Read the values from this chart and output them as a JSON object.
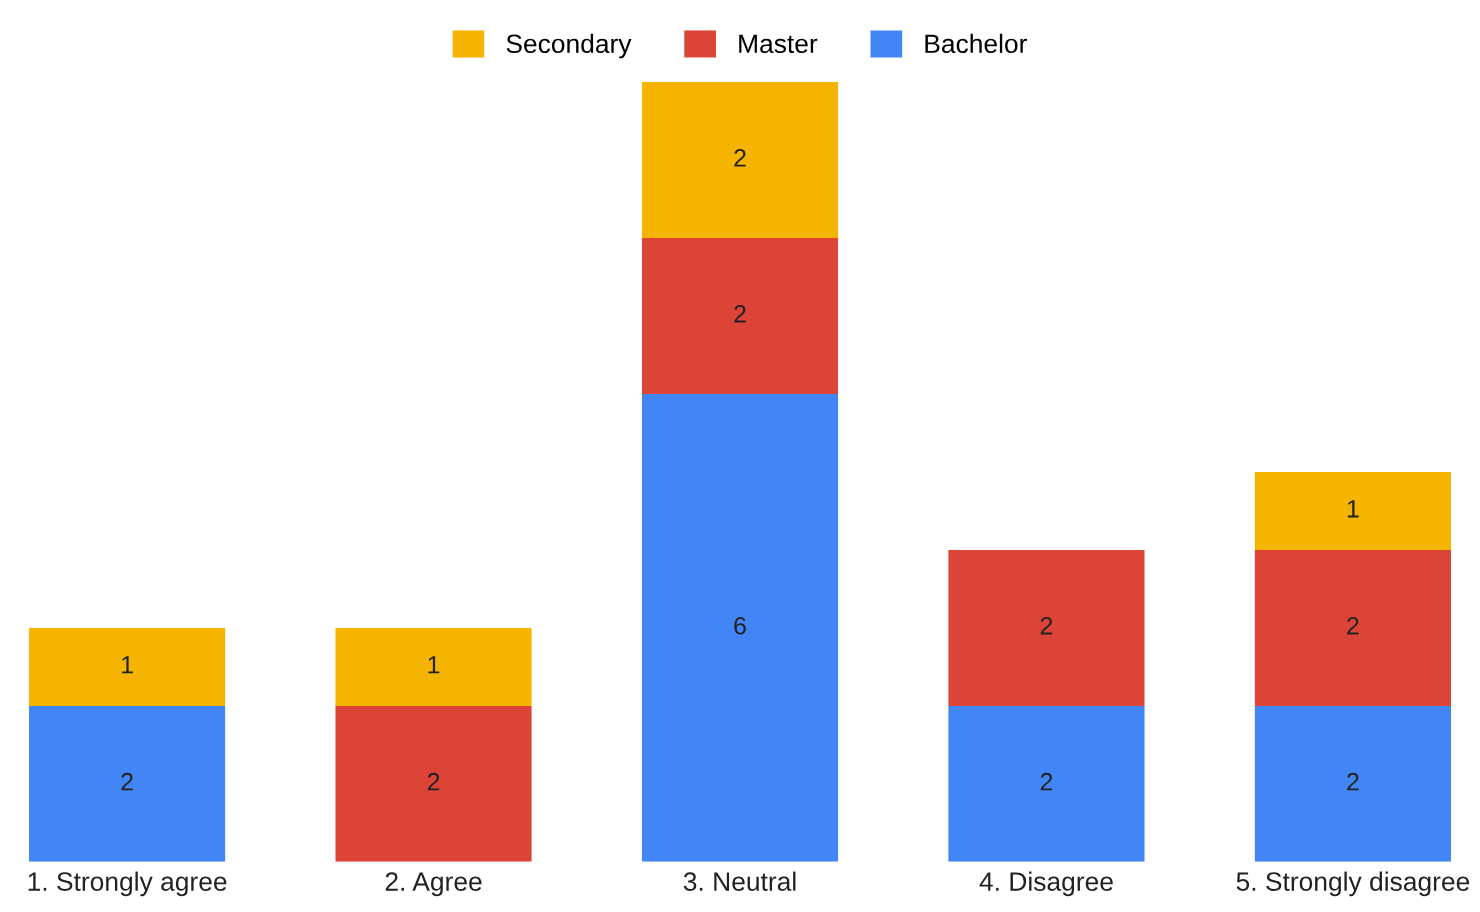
{
  "chart_data": {
    "type": "bar",
    "stacked": true,
    "data_labels": true,
    "legend": "top",
    "grid": false,
    "categories": [
      "1. Strongly agree",
      "2. Agree",
      "3. Neutral",
      "4. Disagree",
      "5. Strongly disagree"
    ],
    "series": [
      {
        "name": "Bachelor",
        "color": "#4285f4",
        "values": [
          2,
          null,
          6,
          2,
          2
        ]
      },
      {
        "name": "Master",
        "color": "#db4437",
        "values": [
          null,
          2,
          2,
          2,
          2
        ]
      },
      {
        "name": "Secondary",
        "color": "#f4b400",
        "values": [
          1,
          1,
          2,
          null,
          1
        ]
      }
    ]
  }
}
